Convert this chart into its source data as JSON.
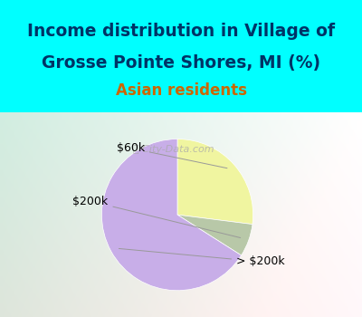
{
  "title_line1": "Income distribution in Village of",
  "title_line2": "Grosse Pointe Shores, MI (%)",
  "subtitle": "Asian residents",
  "title_fontsize": 13.5,
  "subtitle_fontsize": 12,
  "title_color": "#003366",
  "subtitle_color": "#cc6600",
  "header_bg_color": "#00ffff",
  "chart_bg_color": "#d0ead8",
  "slices": [
    {
      "label": "> $200k",
      "value": 66,
      "color": "#c8aee8"
    },
    {
      "label": "$60k",
      "value": 27,
      "color": "#f0f5a0"
    },
    {
      "label": "$200k",
      "value": 7,
      "color": "#b8c8a8"
    }
  ],
  "watermark": "City-Data.com",
  "startangle": 90,
  "figsize": [
    4.0,
    3.5
  ],
  "dpi": 100
}
